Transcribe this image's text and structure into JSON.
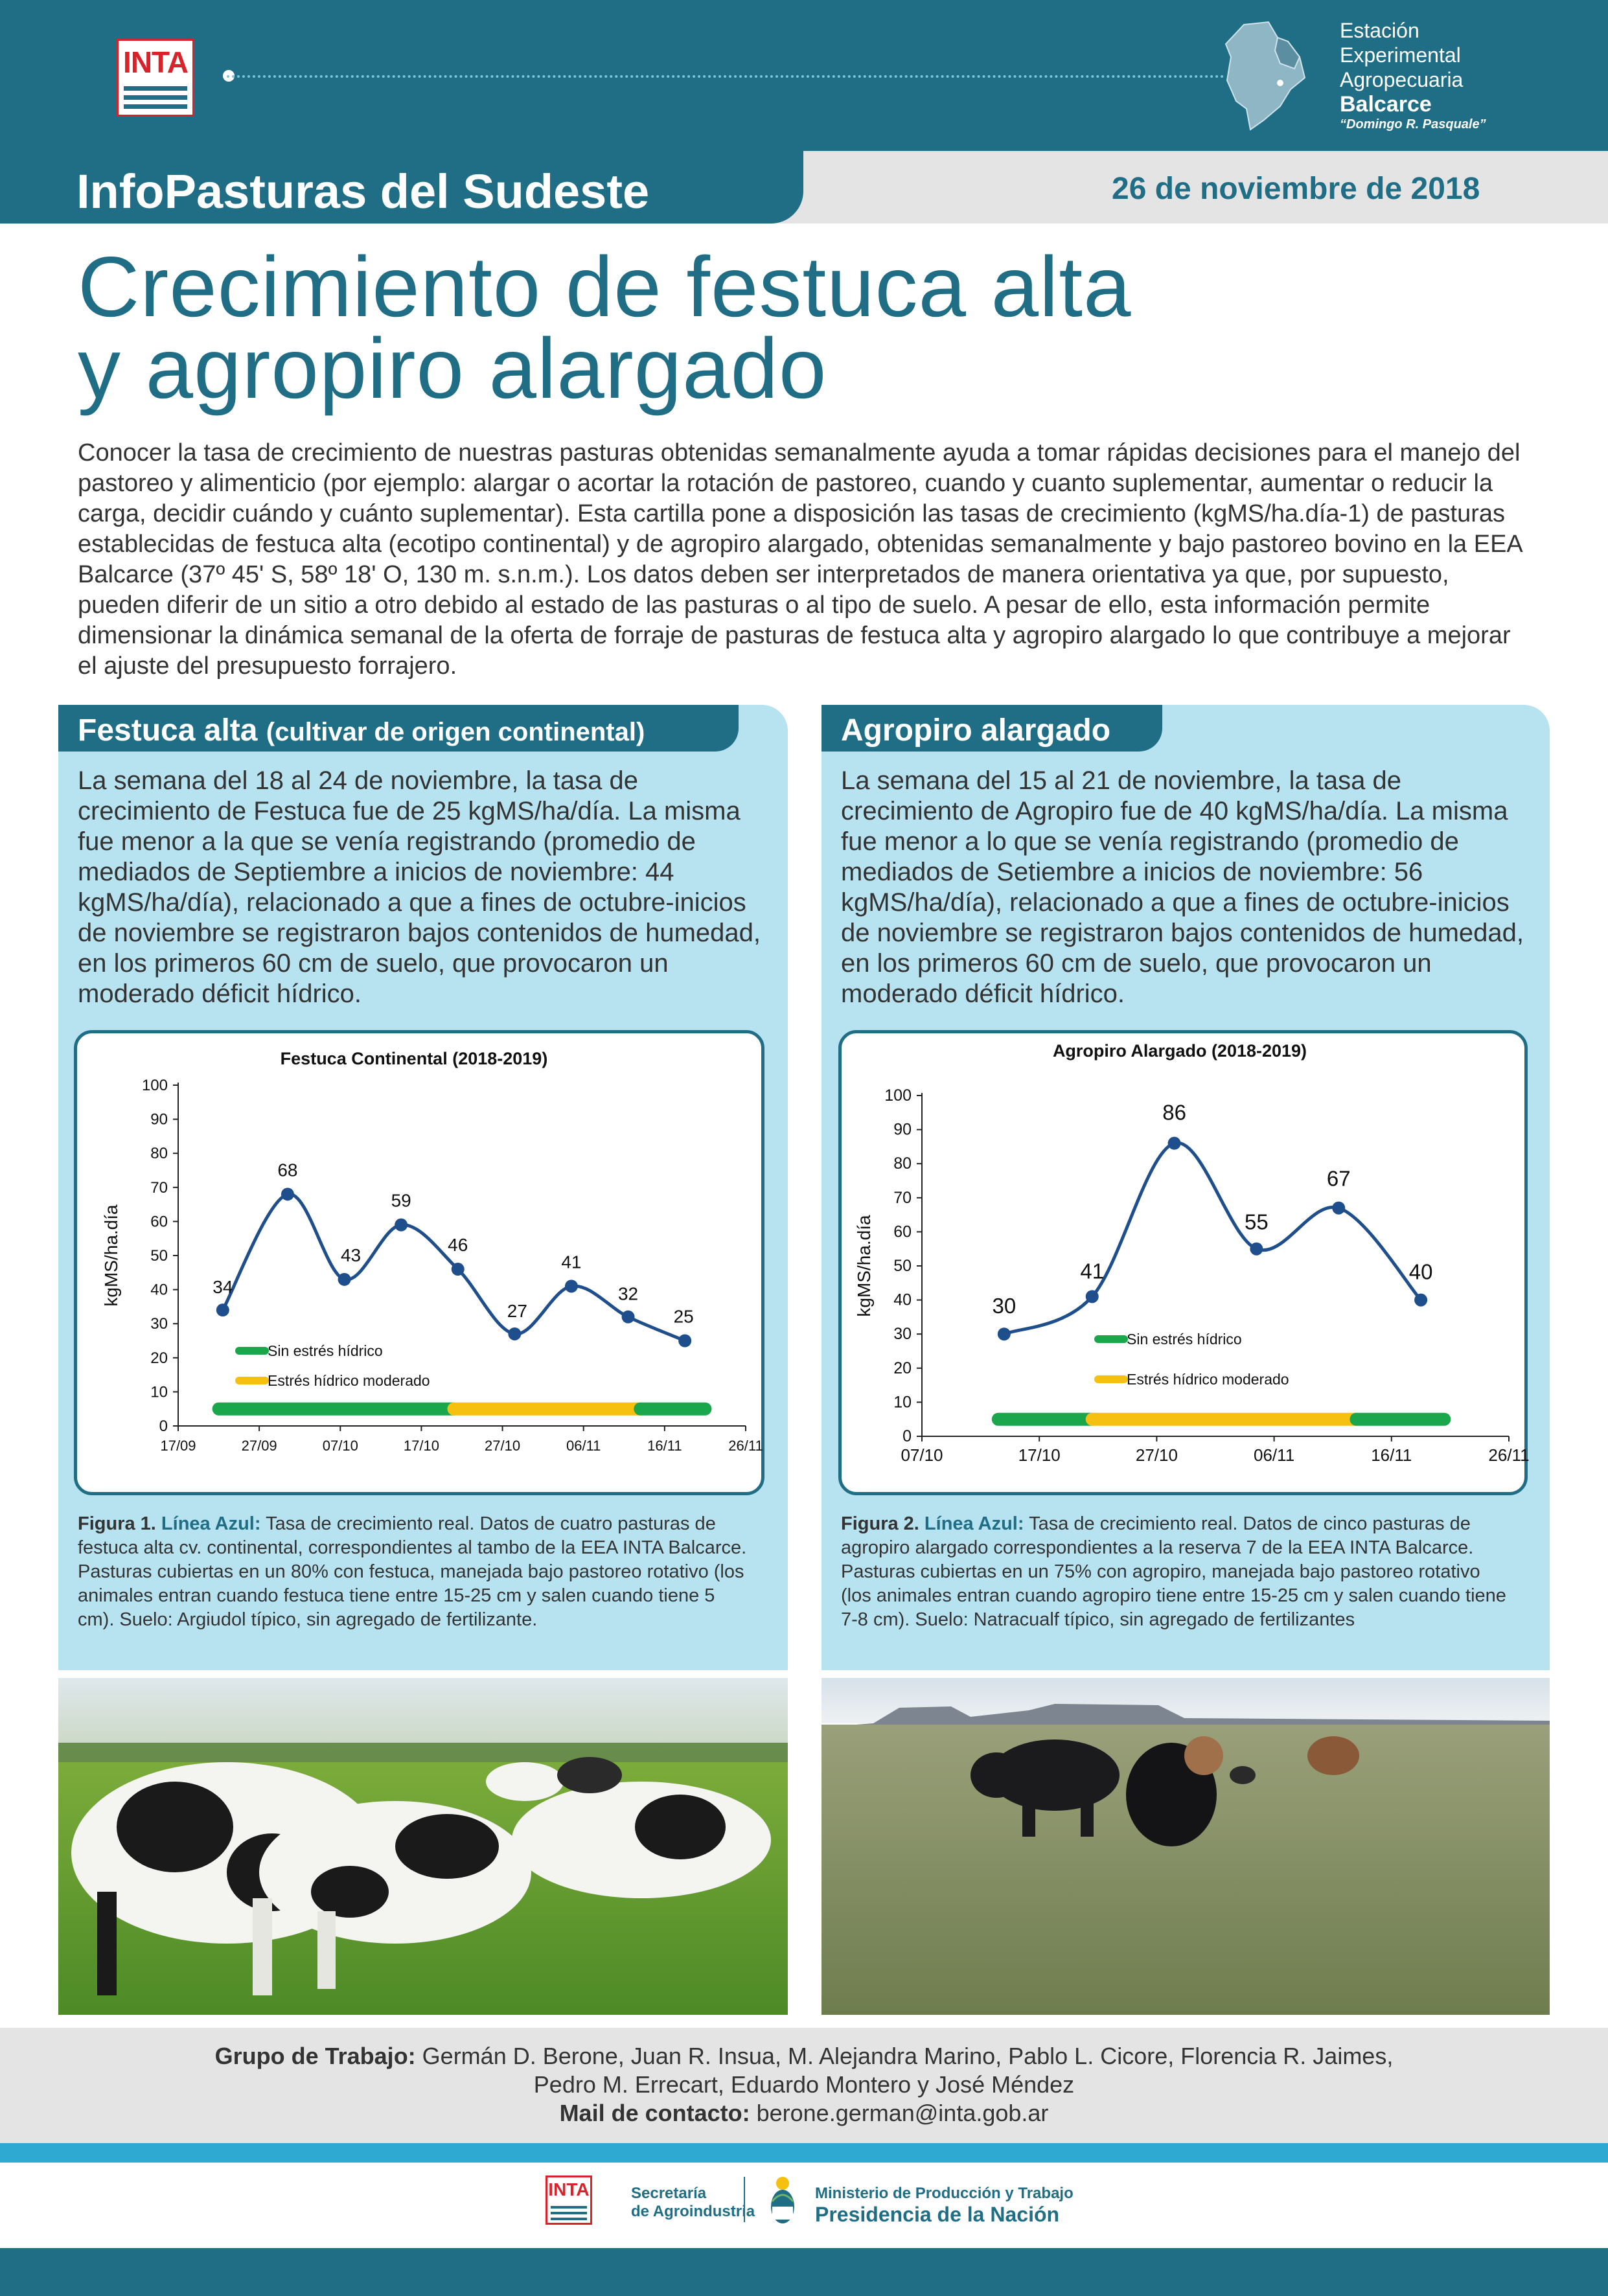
{
  "header": {
    "logo_text": "INTA",
    "eea": {
      "line1": "Estación",
      "line2": "Experimental",
      "line3": "Agropecuaria",
      "line4": "Balcarce",
      "line5": "“Domingo R. Pasquale”"
    },
    "title": "InfoPasturas del Sudeste",
    "date": "26 de noviembre de 2018"
  },
  "headline": {
    "line1": "Crecimiento de festuca alta",
    "line2": "y agropiro alargado"
  },
  "intro": "Conocer la tasa de crecimiento de nuestras pasturas obtenidas semanalmente ayuda a tomar rápidas decisiones para el manejo del pastoreo y alimenticio (por ejemplo: alargar o acortar la rotación de pastoreo, cuando y cuanto suplementar, aumentar o reducir la carga, decidir cuándo y cuánto suplementar). Esta cartilla pone a disposición las tasas de crecimiento (kgMS/ha.día-1) de pasturas establecidas de festuca alta (ecotipo continental) y de agropiro alargado, obtenidas semanalmente y bajo pastoreo bovino en la EEA Balcarce (37º 45' S, 58º 18' O, 130 m. s.n.m.). Los datos deben ser interpretados de manera orientativa ya que, por supuesto, pueden diferir de un sitio a otro debido al estado de las pasturas o al tipo de suelo. A pesar de ello, esta información permite dimensionar la dinámica semanal de la oferta de forraje de pasturas de festuca alta y agropiro alargado lo que contribuye a mejorar el ajuste del presupuesto forrajero.",
  "festuca": {
    "tab_title": "Festuca alta",
    "tab_sub": "(cultivar de origen continental)",
    "text": "La semana del 18 al 24 de noviembre, la tasa de crecimiento de Festuca fue de 25 kgMS/ha/día. La misma fue menor a la que se venía registrando (promedio de mediados de Septiembre a inicios de noviembre: 44 kgMS/ha/día), relacionado a que a fines de octubre-inicios de noviembre se registraron bajos contenidos de humedad, en los primeros 60 cm de suelo, que provocaron un moderado déficit hídrico.",
    "caption_fig": "Figura 1.",
    "caption_blue": "Línea Azul:",
    "caption_rest": " Tasa de crecimiento real. Datos de cuatro pasturas de festuca alta cv. continental, correspondientes al tambo de la EEA INTA Balcarce. Pasturas cubiertas en un 80% con festuca, manejada bajo pastoreo rotativo (los animales entran cuando festuca tiene entre 15-25 cm y salen cuando tiene 5 cm). Suelo: Argiudol típico, sin agregado de fertilizante."
  },
  "agropiro": {
    "tab_title": "Agropiro alargado",
    "text": "La semana del 15 al 21 de noviembre, la tasa de crecimiento de Agropiro fue de 40 kgMS/ha/día. La misma fue menor a lo que se venía registrando (promedio de mediados de Setiembre a inicios de noviembre: 56 kgMS/ha/día), relacionado a que a fines de octubre-inicios de noviembre se registraron bajos contenidos de humedad, en los primeros 60 cm de suelo, que provocaron un moderado déficit hídrico.",
    "caption_fig": "Figura 2.",
    "caption_blue": "Línea Azul:",
    "caption_rest": " Tasa de crecimiento real. Datos de cinco pasturas de agropiro alargado correspondientes a la reserva 7 de la EEA INTA Balcarce. Pasturas cubiertas en un 75% con agropiro, manejada bajo pastoreo rotativo (los animales entran cuando agropiro tiene entre 15-25 cm y salen cuando tiene 7-8 cm). Suelo: Natracualf típico, sin agregado de fertilizantes"
  },
  "chart_data": [
    {
      "type": "line",
      "title": "Festuca Continental (2018-2019)",
      "ylabel": "kgMS/ha.día",
      "xlabel": "",
      "ylim": [
        0,
        100
      ],
      "yticks": [
        0,
        10,
        20,
        30,
        40,
        50,
        60,
        70,
        80,
        90,
        100
      ],
      "xlim_days": [
        0,
        70
      ],
      "xtick_labels": [
        "17/09",
        "27/09",
        "07/10",
        "17/10",
        "27/10",
        "06/11",
        "16/11",
        "26/11"
      ],
      "x_day_offsets": [
        5.5,
        13.5,
        20.5,
        27.5,
        34.5,
        41.5,
        48.5,
        55.5,
        62.5
      ],
      "values": [
        34,
        68,
        43,
        59,
        46,
        27,
        41,
        32,
        25
      ],
      "line_color": "#1f4e8c",
      "legend": [
        "Sin estrés hídrico",
        "Estrés hídrico moderado"
      ],
      "legend_colors": [
        "#1aa64b",
        "#f5c00f"
      ],
      "bars": [
        {
          "from": 5,
          "to": 34,
          "color": "#1aa64b"
        },
        {
          "from": 34,
          "to": 57,
          "color": "#f5c00f"
        },
        {
          "from": 57,
          "to": 65,
          "color": "#1aa64b"
        }
      ]
    },
    {
      "type": "line",
      "title": "Agropiro Alargado (2018-2019)",
      "ylabel": "kgMS/ha.día",
      "xlabel": "",
      "ylim": [
        0,
        100
      ],
      "yticks": [
        0,
        10,
        20,
        30,
        40,
        50,
        60,
        70,
        80,
        90,
        100
      ],
      "xlim_days": [
        0,
        50
      ],
      "xtick_labels": [
        "07/10",
        "17/10",
        "27/10",
        "06/11",
        "16/11",
        "26/11"
      ],
      "x_day_offsets": [
        7,
        14.5,
        21.5,
        28.5,
        35.5,
        42.5
      ],
      "values": [
        30,
        41,
        86,
        55,
        67,
        40
      ],
      "line_color": "#1f4e8c",
      "legend": [
        "Sin estrés hídrico",
        "Estrés hídrico moderado"
      ],
      "legend_colors": [
        "#1aa64b",
        "#f5c00f"
      ],
      "bars": [
        {
          "from": 6.5,
          "to": 14.5,
          "color": "#1aa64b"
        },
        {
          "from": 14.5,
          "to": 37,
          "color": "#f5c00f"
        },
        {
          "from": 37,
          "to": 44.5,
          "color": "#1aa64b"
        }
      ]
    }
  ],
  "footer": {
    "grupo_label": "Grupo de Trabajo:",
    "grupo_names1": " Germán D. Berone, Juan R. Insua, M. Alejandra Marino, Pablo L. Cicore, Florencia R. Jaimes,",
    "grupo_names2": "Pedro M. Errecart, Eduardo Montero y José Méndez",
    "mail_label": "Mail de contacto:",
    "mail": " berone.german@inta.gob.ar",
    "secretaria1": "Secretaría",
    "secretaria2": "de Agroindustria",
    "ministerio": "Ministerio de Producción y Trabajo",
    "presidencia": "Presidencia de la Nación"
  }
}
